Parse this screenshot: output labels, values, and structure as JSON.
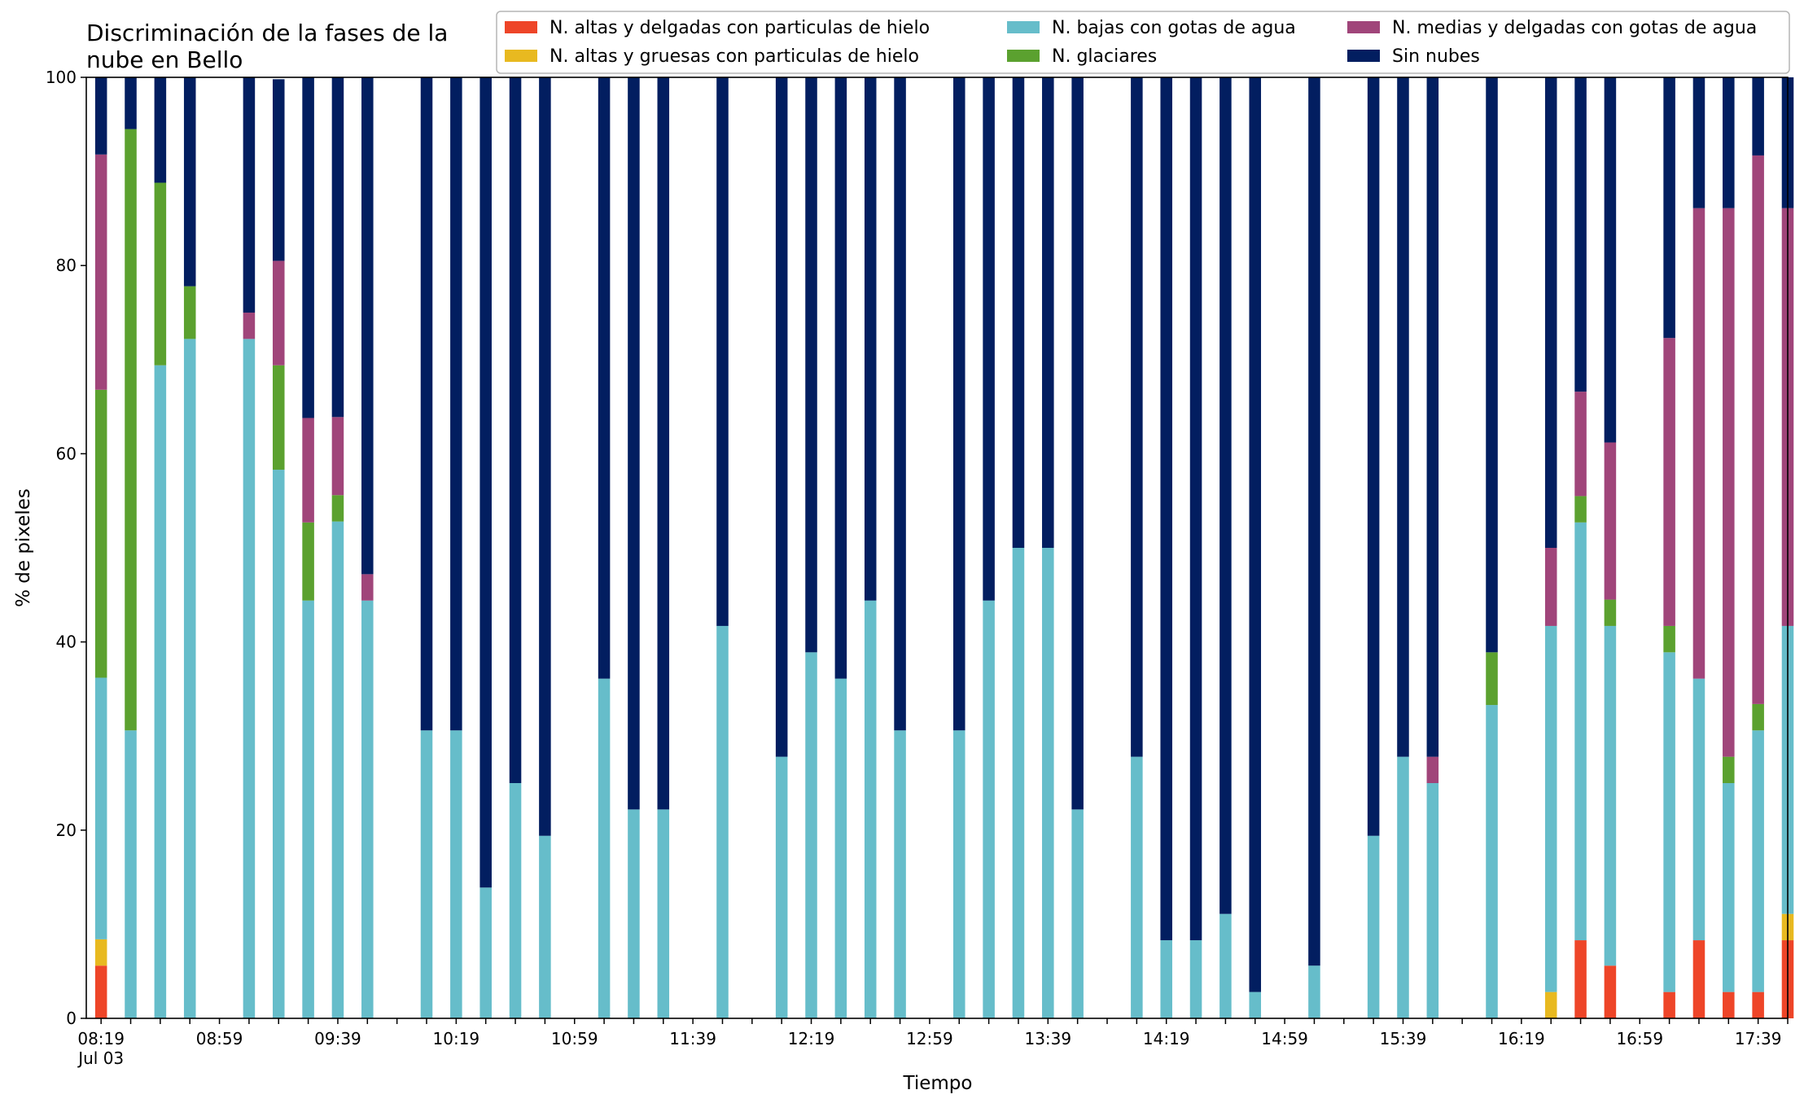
{
  "chart_data": {
    "type": "bar",
    "stacked": true,
    "title": [
      "Discriminación de la fases de la",
      "nube en Bello"
    ],
    "xlabel": "Tiempo",
    "ylabel": "% de pixeles",
    "ylim": [
      0,
      100
    ],
    "yticks": [
      0,
      20,
      40,
      60,
      80,
      100
    ],
    "xlim": [
      "08:14",
      "17:49"
    ],
    "x_date_label": "Jul 03",
    "xtick_labels": [
      "08:19",
      "08:59",
      "09:39",
      "10:19",
      "10:59",
      "11:39",
      "12:19",
      "12:59",
      "13:39",
      "14:19",
      "14:59",
      "15:39",
      "16:19",
      "16:59",
      "17:39"
    ],
    "x": [
      "08:19",
      "08:29",
      "08:39",
      "08:49",
      "09:09",
      "09:19",
      "09:29",
      "09:39",
      "09:49",
      "10:09",
      "10:19",
      "10:29",
      "10:39",
      "10:49",
      "11:09",
      "11:19",
      "11:29",
      "11:49",
      "12:09",
      "12:19",
      "12:29",
      "12:39",
      "12:49",
      "13:09",
      "13:19",
      "13:29",
      "13:39",
      "13:49",
      "14:09",
      "14:19",
      "14:29",
      "14:39",
      "14:49",
      "15:09",
      "15:29",
      "15:39",
      "15:49",
      "16:09",
      "16:29",
      "16:39",
      "16:49",
      "17:09",
      "17:19",
      "17:29",
      "17:39",
      "17:49"
    ],
    "series": [
      {
        "name": "N. altas y delgadas con particulas de hielo",
        "color": "#ee4528",
        "values": [
          5.6,
          0,
          0,
          0,
          0,
          0,
          0,
          0,
          0,
          0,
          0,
          0,
          0,
          0,
          0,
          0,
          0,
          0,
          0,
          0,
          0,
          0,
          0,
          0,
          0,
          0,
          0,
          0,
          0,
          0,
          0,
          0,
          0,
          0,
          0,
          0,
          0,
          0,
          0,
          8.3,
          5.6,
          2.8,
          8.3,
          2.8,
          2.8,
          8.3
        ]
      },
      {
        "name": "N. altas y gruesas con particulas de hielo",
        "color": "#e8b920",
        "values": [
          2.8,
          0,
          0,
          0,
          0,
          0,
          0,
          0,
          0,
          0,
          0,
          0,
          0,
          0,
          0,
          0,
          0,
          0,
          0,
          0,
          0,
          0,
          0,
          0,
          0,
          0,
          0,
          0,
          0,
          0,
          0,
          0,
          0,
          0,
          0,
          0,
          0,
          0,
          2.8,
          0,
          0,
          0,
          0,
          0,
          0,
          2.8
        ]
      },
      {
        "name": "N. bajas con gotas de agua",
        "color": "#66bdca",
        "values": [
          27.8,
          30.6,
          69.4,
          72.2,
          72.2,
          58.3,
          44.4,
          52.8,
          44.4,
          30.6,
          30.6,
          13.9,
          25.0,
          19.4,
          36.1,
          22.2,
          22.2,
          41.7,
          27.8,
          38.9,
          36.1,
          44.4,
          30.6,
          30.6,
          44.4,
          50.0,
          50.0,
          22.2,
          27.8,
          8.3,
          8.3,
          11.1,
          2.8,
          5.6,
          19.4,
          27.8,
          25.0,
          33.3,
          38.9,
          44.4,
          36.1,
          36.1,
          27.8,
          22.2,
          27.8,
          30.6
        ]
      },
      {
        "name": "N. glaciares",
        "color": "#5ba12f",
        "values": [
          30.6,
          63.9,
          19.4,
          5.6,
          0,
          11.1,
          8.3,
          2.8,
          0,
          0,
          0,
          0,
          0,
          0,
          0,
          0,
          0,
          0,
          0,
          0,
          0,
          0,
          0,
          0,
          0,
          0,
          0,
          0,
          0,
          0,
          0,
          0,
          0,
          0,
          0,
          0,
          0,
          5.6,
          0,
          2.8,
          2.8,
          2.8,
          0,
          2.8,
          2.8,
          0
        ]
      },
      {
        "name": "N. medias y delgadas con gotas de agua",
        "color": "#a0457a",
        "values": [
          25.0,
          0,
          0,
          0,
          2.8,
          11.1,
          11.1,
          8.3,
          2.8,
          0,
          0,
          0,
          0,
          0,
          0,
          0,
          0,
          0,
          0,
          0,
          0,
          0,
          0,
          0,
          0,
          0,
          0,
          0,
          0,
          0,
          0,
          0,
          0,
          0,
          0,
          0,
          2.8,
          0,
          8.3,
          11.1,
          16.7,
          30.6,
          50.0,
          58.3,
          58.3,
          44.4
        ]
      },
      {
        "name": "Sin nubes",
        "color": "#021e60",
        "values": [
          8.2,
          5.5,
          11.2,
          22.2,
          25.0,
          19.3,
          36.2,
          36.1,
          52.8,
          69.4,
          69.4,
          86.1,
          75.0,
          80.6,
          63.9,
          77.8,
          77.8,
          58.3,
          72.2,
          61.1,
          63.9,
          55.6,
          69.4,
          69.4,
          55.6,
          50.0,
          50.0,
          77.8,
          72.2,
          91.7,
          91.7,
          88.9,
          97.2,
          94.4,
          80.6,
          72.2,
          72.2,
          61.1,
          50.0,
          33.4,
          38.8,
          27.7,
          13.9,
          13.9,
          8.3,
          13.9
        ]
      }
    ],
    "legend_placement": "top-right",
    "grid": false
  }
}
